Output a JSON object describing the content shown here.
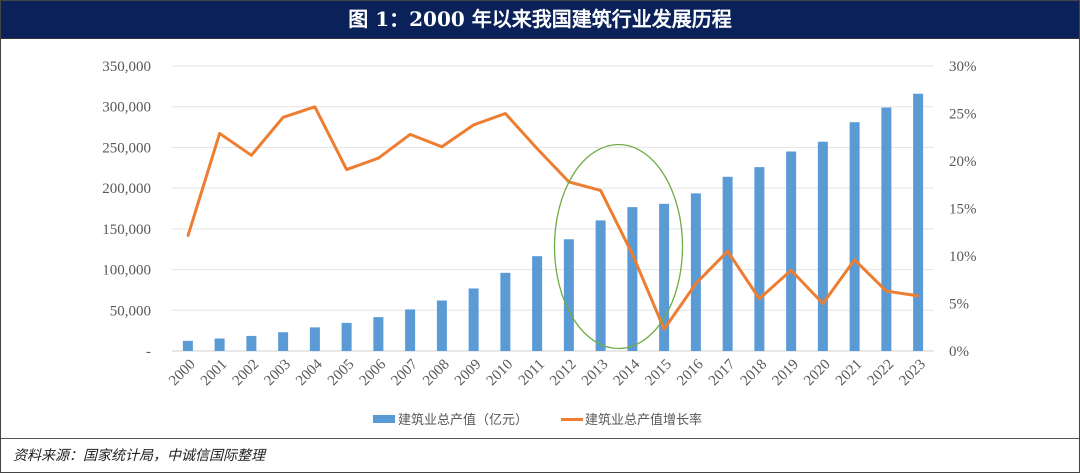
{
  "title": "图 1：2000 年以来我国建筑行业发展历程",
  "source": "资料来源：国家统计局，中诚信国际整理",
  "colors": {
    "bar": "#5b9bd5",
    "line": "#ed7d31",
    "ellipse": "#70ad47",
    "header": "#0a215a"
  },
  "chart_data": {
    "type": "bar+line",
    "categories": [
      "2000",
      "2001",
      "2002",
      "2003",
      "2004",
      "2005",
      "2006",
      "2007",
      "2008",
      "2009",
      "2010",
      "2011",
      "2012",
      "2013",
      "2014",
      "2015",
      "2016",
      "2017",
      "2018",
      "2019",
      "2020",
      "2021",
      "2022",
      "2023"
    ],
    "series": [
      {
        "name": "建筑业总产值（亿元）",
        "type": "bar",
        "axis": "left",
        "values": [
          12498,
          15362,
          18527,
          23084,
          29021,
          34552,
          41557,
          51044,
          62037,
          76808,
          96031,
          116463,
          137218,
          160366,
          176713,
          180757,
          193567,
          213944,
          225817,
          245000,
          257000,
          281000,
          299000,
          315912
        ]
      },
      {
        "name": "建筑业总产值增长率",
        "type": "line",
        "axis": "right",
        "values": [
          12.1,
          22.9,
          20.6,
          24.6,
          25.7,
          19.1,
          20.3,
          22.8,
          21.5,
          23.8,
          25.0,
          21.3,
          17.8,
          16.9,
          10.2,
          2.3,
          7.1,
          10.5,
          5.5,
          8.5,
          5.0,
          9.6,
          6.3,
          5.8
        ]
      }
    ],
    "left_axis": {
      "ylim": [
        0,
        350000
      ],
      "ticks": [
        "-",
        "50,000",
        "100,000",
        "150,000",
        "200,000",
        "250,000",
        "300,000",
        "350,000"
      ]
    },
    "right_axis": {
      "ylim": [
        0,
        30
      ],
      "ticks": [
        "0%",
        "5%",
        "10%",
        "15%",
        "20%",
        "25%",
        "30%"
      ]
    },
    "grid": true,
    "legend": "bottom",
    "annotation": "green ellipse around 2013-2015"
  }
}
